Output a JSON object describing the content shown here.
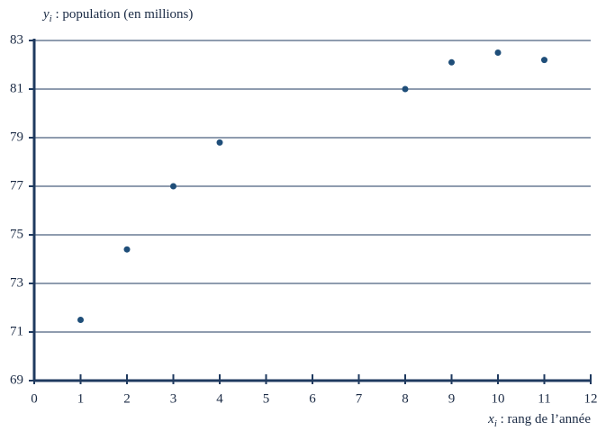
{
  "chart_data": {
    "type": "scatter",
    "y_label": {
      "var": "y",
      "sub": "i",
      "text": " : population (en millions)"
    },
    "x_label": {
      "var": "x",
      "sub": "i",
      "text": " : rang de l’année"
    },
    "x": [
      1,
      2,
      3,
      4,
      8,
      9,
      10,
      11
    ],
    "values": [
      71.5,
      74.4,
      77.0,
      78.8,
      81.0,
      82.1,
      82.5,
      82.2
    ],
    "color": "#1f4e79",
    "xlim": [
      0,
      12
    ],
    "xticks": [
      0,
      1,
      2,
      3,
      4,
      5,
      6,
      7,
      8,
      9,
      10,
      11,
      12
    ],
    "ylim": [
      69,
      83
    ],
    "yticks": [
      69,
      71,
      73,
      75,
      77,
      79,
      81,
      83
    ],
    "grid": true
  }
}
